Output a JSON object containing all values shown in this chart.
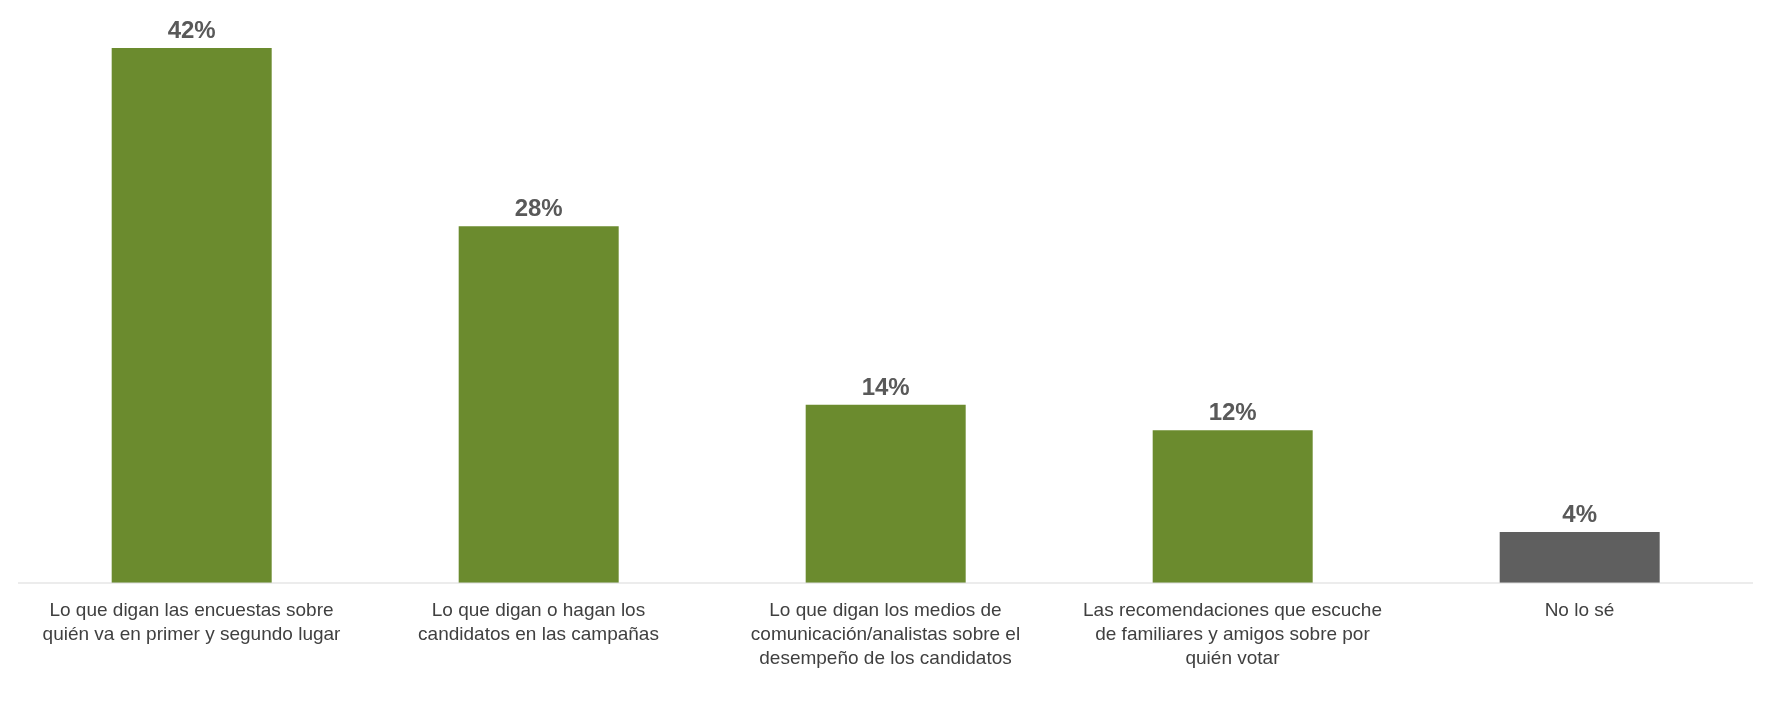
{
  "chart_data": {
    "type": "bar",
    "categories": [
      "Lo que digan las encuestas sobre quién va en primer y segundo lugar",
      "Lo que digan o hagan los candidatos en las campañas",
      "Lo que digan los medios de comunicación/analistas sobre el desempeño de los candidatos",
      "Las recomendaciones que escuche de familiares y amigos sobre por quién votar",
      "No lo sé"
    ],
    "values": [
      42,
      28,
      14,
      12,
      4
    ],
    "value_labels": [
      "42%",
      "28%",
      "14%",
      "12%",
      "4%"
    ],
    "colors": [
      "#6b8b2e",
      "#6b8b2e",
      "#6b8b2e",
      "#6b8b2e",
      "#5f5f5f"
    ],
    "grid": false,
    "legend": false
  }
}
